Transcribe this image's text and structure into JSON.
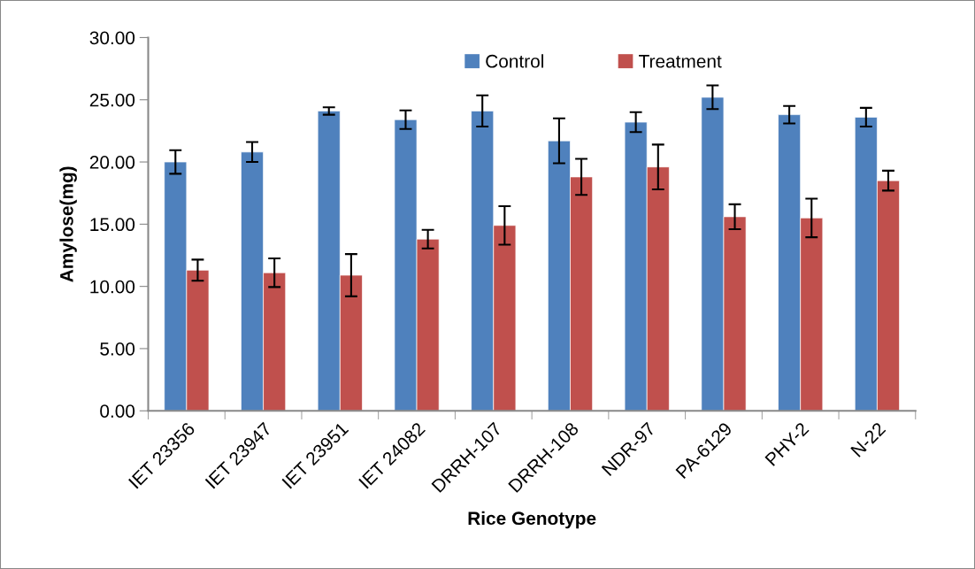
{
  "chart_data": {
    "type": "bar",
    "xlabel": "Rice Genotype",
    "ylabel": "Amylose(mg)",
    "categories": [
      "IET 23356",
      "IET 23947",
      "IET 23951",
      "IET 24082",
      "DRRH-107",
      "DRRH-108",
      "NDR-97",
      "PA-6129",
      "PHY-2",
      "N-22"
    ],
    "series": [
      {
        "name": "Control",
        "color": "#4f81bd",
        "values": [
          20.0,
          20.8,
          24.1,
          23.4,
          24.1,
          21.7,
          23.2,
          25.2,
          23.8,
          23.6
        ],
        "errors": [
          0.95,
          0.8,
          0.3,
          0.75,
          1.25,
          1.8,
          0.8,
          0.95,
          0.7,
          0.75
        ]
      },
      {
        "name": "Treatment",
        "color": "#c0504d",
        "values": [
          11.3,
          11.1,
          10.9,
          13.8,
          14.9,
          18.8,
          19.6,
          15.6,
          15.5,
          18.5
        ],
        "errors": [
          0.85,
          1.15,
          1.7,
          0.75,
          1.55,
          1.45,
          1.8,
          1.0,
          1.55,
          0.8
        ]
      }
    ],
    "ylim": [
      0,
      30
    ],
    "yticks": [
      {
        "value": 0,
        "label": "0.00"
      },
      {
        "value": 5,
        "label": "5.00"
      },
      {
        "value": 10,
        "label": "10.00"
      },
      {
        "value": 15,
        "label": "15.00"
      },
      {
        "value": 20,
        "label": "20.00"
      },
      {
        "value": 25,
        "label": "25.00"
      },
      {
        "value": 30,
        "label": "30.00"
      }
    ],
    "grid": false,
    "legend": "top"
  }
}
